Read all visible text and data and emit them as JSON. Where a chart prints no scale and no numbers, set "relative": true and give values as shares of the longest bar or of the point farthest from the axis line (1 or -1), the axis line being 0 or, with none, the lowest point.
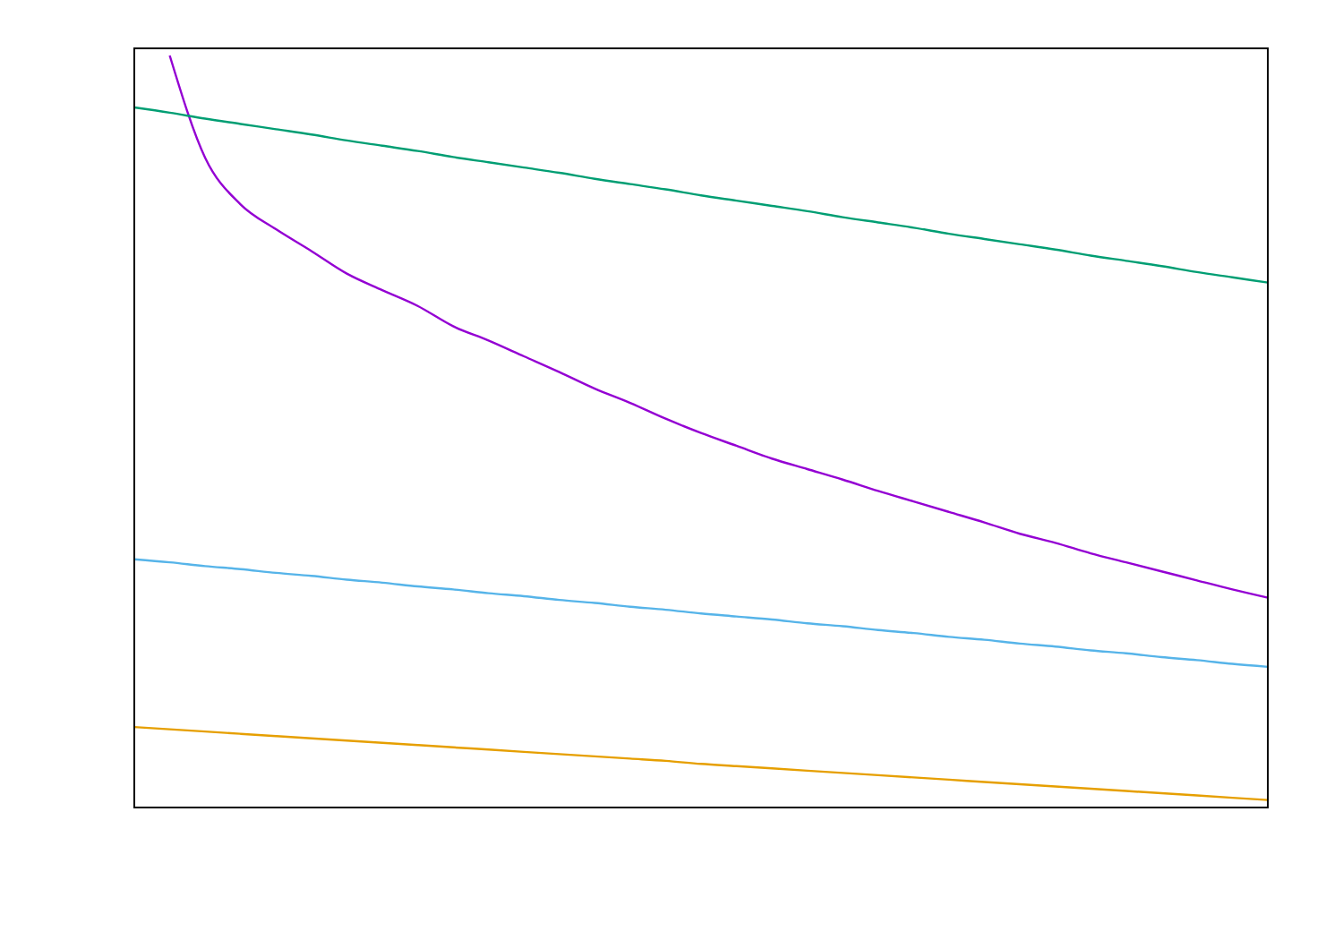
{
  "chart_data": {
    "type": "line",
    "relative": true,
    "categories": [
      null,
      null,
      null,
      null,
      null,
      null,
      null,
      null,
      null,
      null,
      null,
      null,
      null,
      null,
      null,
      null,
      null,
      null,
      null,
      null,
      null,
      null,
      null,
      null,
      null,
      null,
      null,
      null,
      null,
      null,
      null,
      null,
      null
    ],
    "series": [
      {
        "color": "#9400d3",
        "values": [
          null,
          1.0,
          0.864,
          0.802,
          0.769,
          0.74,
          0.71,
          0.688,
          0.667,
          0.64,
          0.621,
          0.6,
          0.579,
          0.557,
          0.538,
          0.517,
          0.498,
          0.481,
          0.464,
          0.45,
          0.436,
          0.421,
          0.407,
          0.393,
          0.379,
          0.364,
          0.352,
          0.338,
          0.326,
          0.314,
          0.302,
          0.29,
          0.279
        ]
      },
      {
        "color": "#009e73",
        "values": [
          0.931,
          0.924,
          0.916,
          0.909,
          0.902,
          0.895,
          0.887,
          0.88,
          0.873,
          0.865,
          0.858,
          0.851,
          0.844,
          0.836,
          0.829,
          0.822,
          0.814,
          0.807,
          0.8,
          0.793,
          0.785,
          0.778,
          0.771,
          0.763,
          0.756,
          0.749,
          0.742,
          0.734,
          0.727,
          0.72,
          0.712,
          0.705,
          0.698
        ]
      },
      {
        "color": "#56b4e9",
        "values": [
          0.33,
          0.326,
          0.321,
          0.317,
          0.312,
          0.308,
          0.303,
          0.299,
          0.294,
          0.29,
          0.285,
          0.281,
          0.276,
          0.272,
          0.267,
          0.263,
          0.258,
          0.254,
          0.25,
          0.245,
          0.241,
          0.236,
          0.232,
          0.227,
          0.223,
          0.218,
          0.214,
          0.209,
          0.205,
          0.2,
          0.196,
          0.191,
          0.187
        ]
      },
      {
        "color": "#e69f00",
        "values": [
          0.107,
          0.104,
          0.101,
          0.098,
          0.095,
          0.092,
          0.089,
          0.086,
          0.083,
          0.08,
          0.077,
          0.074,
          0.071,
          0.068,
          0.065,
          0.062,
          0.058,
          0.055,
          0.052,
          0.049,
          0.046,
          0.043,
          0.04,
          0.037,
          0.034,
          0.031,
          0.028,
          0.025,
          0.022,
          0.019,
          0.016,
          0.013,
          0.01
        ]
      }
    ]
  }
}
